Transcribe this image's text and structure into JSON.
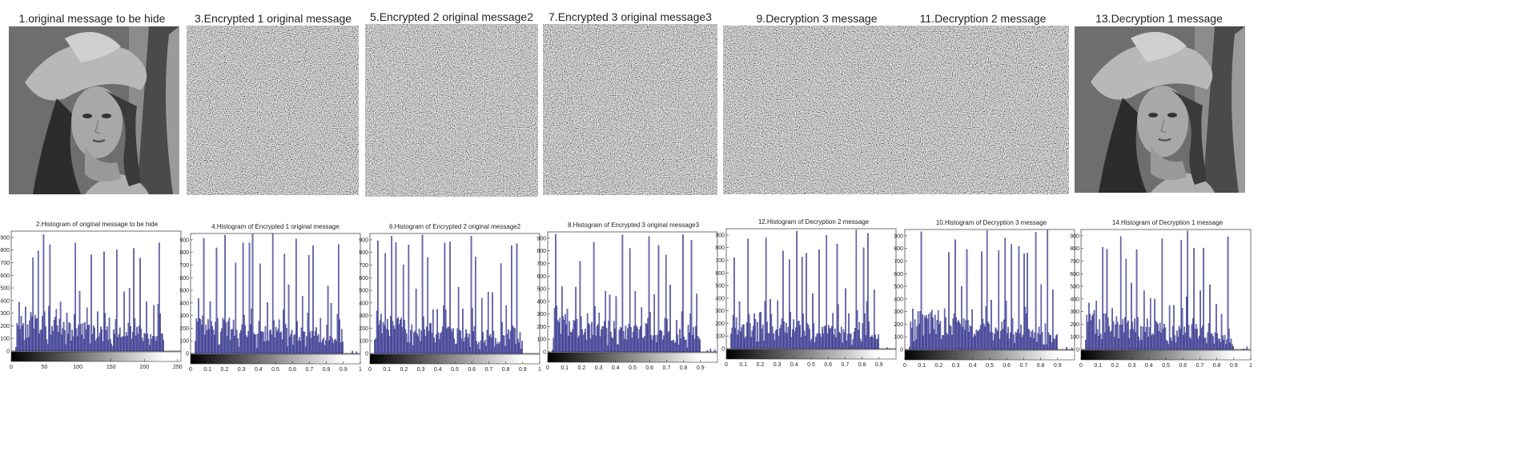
{
  "images": [
    {
      "title": "1.original message to be hide",
      "kind": "portrait"
    },
    {
      "title": "3.Encrypted 1 original message",
      "kind": "noise"
    },
    {
      "title": "5.Encrypted 2 original message2",
      "kind": "noise"
    },
    {
      "title": "7.Encrypted 3 original message3",
      "kind": "noise"
    },
    {
      "title": "9.Decryption 3 message",
      "kind": "noise"
    },
    {
      "title": "11.Decryption 2 message",
      "kind": "noise"
    },
    {
      "title": "13.Decryption 1 message",
      "kind": "portrait"
    }
  ],
  "chart_data": [
    {
      "type": "bar",
      "title": "2.Histogram of original message to be hide",
      "xlim": [
        0,
        255
      ],
      "ylim": [
        0,
        950
      ],
      "xticks": [
        "0",
        "50",
        "100",
        "150",
        "200",
        "250"
      ],
      "yticks": [
        "0",
        "100",
        "200",
        "300",
        "400",
        "500",
        "600",
        "700",
        "800",
        "900"
      ],
      "colorbar": "gray",
      "bar_color": "#3a3aa0"
    },
    {
      "type": "bar",
      "title": "4.Histogram of Encrypted 1 original message",
      "xlim": [
        0,
        1
      ],
      "ylim": [
        0,
        950
      ],
      "xticks": [
        "0",
        "0.1",
        "0.2",
        "0.3",
        "0.4",
        "0.5",
        "0.6",
        "0.7",
        "0.8",
        "0.9",
        "1"
      ],
      "yticks": [
        "0",
        "100",
        "200",
        "300",
        "400",
        "500",
        "600",
        "700",
        "800",
        "900"
      ],
      "colorbar": "gray",
      "bar_color": "#3a3aa0"
    },
    {
      "type": "bar",
      "title": "6.Histogram of Encrypted 2 original message2",
      "xlim": [
        0,
        1
      ],
      "ylim": [
        0,
        950
      ],
      "xticks": [
        "0",
        "0.1",
        "0.2",
        "0.3",
        "0.4",
        "0.5",
        "0.6",
        "0.7",
        "0.8",
        "0.9",
        "1"
      ],
      "yticks": [
        "0",
        "100",
        "200",
        "300",
        "400",
        "500",
        "600",
        "700",
        "800",
        "900"
      ],
      "colorbar": "gray",
      "bar_color": "#3a3aa0"
    },
    {
      "type": "bar",
      "title": "8.Histogram of Encrypted 3 original message3",
      "xlim": [
        0,
        1
      ],
      "ylim": [
        0,
        950
      ],
      "xticks": [
        "0",
        "0.1",
        "0.2",
        "0.3",
        "0.4",
        "0.5",
        "0.6",
        "0.7",
        "0.8",
        "0.9"
      ],
      "yticks": [
        "0",
        "100",
        "200",
        "300",
        "400",
        "500",
        "600",
        "700",
        "800",
        "900"
      ],
      "colorbar": "gray",
      "bar_color": "#3a3aa0"
    },
    {
      "type": "bar",
      "title": "12.Histogram of Decryption 2 message",
      "xlim": [
        0,
        1
      ],
      "ylim": [
        0,
        950
      ],
      "xticks": [
        "0",
        "0.1",
        "0.2",
        "0.3",
        "0.4",
        "0.5",
        "0.6",
        "0.7",
        "0.8",
        "0.9"
      ],
      "yticks": [
        "0",
        "100",
        "200",
        "300",
        "400",
        "500",
        "600",
        "700",
        "800",
        "900"
      ],
      "colorbar": "gray",
      "bar_color": "#3a3aa0"
    },
    {
      "type": "bar",
      "title": "10.Histogram of Decryption 3 message",
      "xlim": [
        0,
        1
      ],
      "ylim": [
        0,
        950
      ],
      "xticks": [
        "0",
        "0.1",
        "0.2",
        "0.3",
        "0.4",
        "0.5",
        "0.6",
        "0.7",
        "0.8",
        "0.9"
      ],
      "yticks": [
        "0",
        "100",
        "200",
        "300",
        "400",
        "500",
        "600",
        "700",
        "800",
        "900"
      ],
      "colorbar": "gray",
      "bar_color": "#3a3aa0"
    },
    {
      "type": "bar",
      "title": "14.Histogram of Decryption 1 message",
      "xlim": [
        0,
        1
      ],
      "ylim": [
        0,
        950
      ],
      "xticks": [
        "0",
        "0.1",
        "0.2",
        "0.3",
        "0.4",
        "0.5",
        "0.6",
        "0.7",
        "0.8",
        "0.9",
        "1"
      ],
      "yticks": [
        "0",
        "100",
        "200",
        "300",
        "400",
        "500",
        "600",
        "700",
        "800",
        "900"
      ],
      "colorbar": "gray",
      "bar_color": "#3a3aa0"
    }
  ]
}
